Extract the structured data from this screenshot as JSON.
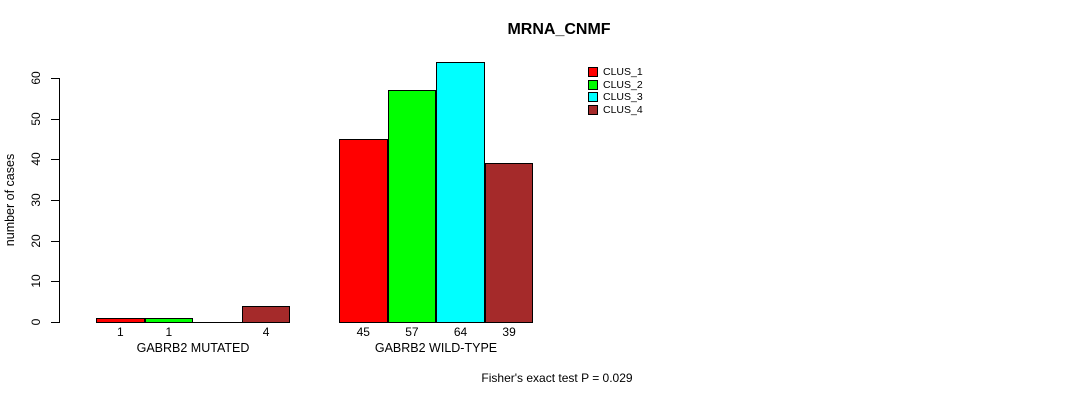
{
  "chart_data": {
    "type": "bar",
    "title": "MRNA_CNMF",
    "ylabel": "number of cases",
    "xlabel": "",
    "yticks": [
      0,
      10,
      20,
      30,
      40,
      50,
      60
    ],
    "ylim": [
      0,
      65
    ],
    "grid": false,
    "legend_position": "top-right",
    "categories": [
      "GABRB2 MUTATED",
      "GABRB2 WILD-TYPE"
    ],
    "series": [
      {
        "name": "CLUS_1",
        "color": "#ff0000",
        "values": [
          1,
          45
        ]
      },
      {
        "name": "CLUS_2",
        "color": "#00ff00",
        "values": [
          1,
          57
        ]
      },
      {
        "name": "CLUS_3",
        "color": "#00ffff",
        "values": [
          0,
          64
        ]
      },
      {
        "name": "CLUS_4",
        "color": "#a52a2a",
        "values": [
          4,
          39
        ]
      }
    ],
    "bar_value_labels": [
      [
        "1",
        "1",
        "",
        "4"
      ],
      [
        "45",
        "57",
        "64",
        "39"
      ]
    ],
    "annotation": "Fisher's exact test P = 0.029"
  },
  "colors": {
    "axis": "#000000",
    "text": "#000000",
    "background": "#ffffff"
  }
}
